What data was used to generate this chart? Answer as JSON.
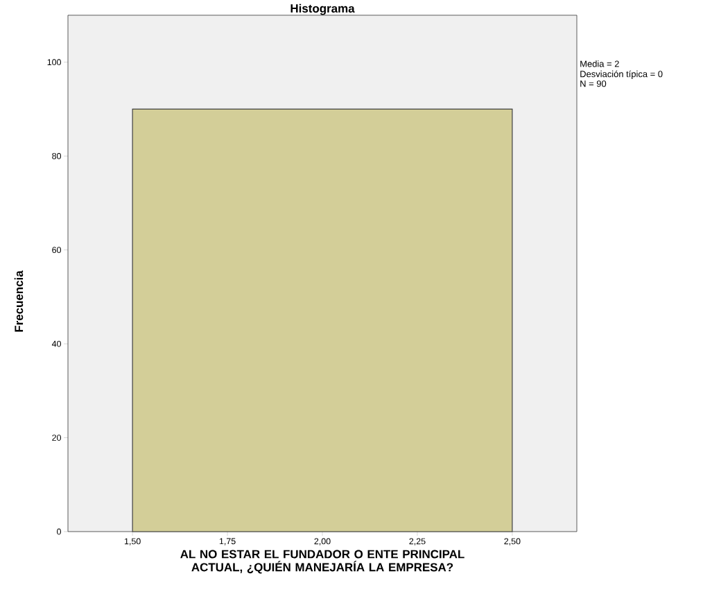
{
  "chart_data": {
    "type": "histogram",
    "title": "Histograma",
    "xlabel": "AL NO ESTAR EL FUNDADOR O ENTE PRINCIPAL ACTUAL, ¿QUIÉN MANEJARÍA LA EMPRESA?",
    "ylabel": "Frecuencia",
    "bins": [
      1.5,
      2.5
    ],
    "values": [
      90
    ],
    "color": "#d3ce98",
    "xlim": [
      1.33,
      2.67
    ],
    "ylim": [
      0,
      110
    ],
    "xticks": [
      {
        "value": 1.5,
        "label": "1,50"
      },
      {
        "value": 1.75,
        "label": "1,75"
      },
      {
        "value": 2.0,
        "label": "2,00"
      },
      {
        "value": 2.25,
        "label": "2,25"
      },
      {
        "value": 2.5,
        "label": "2,50"
      }
    ],
    "yticks": [
      0,
      20,
      40,
      60,
      80,
      100
    ],
    "annotations": [
      "Media = 2",
      "Desviación típica = 0",
      "N = 90"
    ]
  }
}
